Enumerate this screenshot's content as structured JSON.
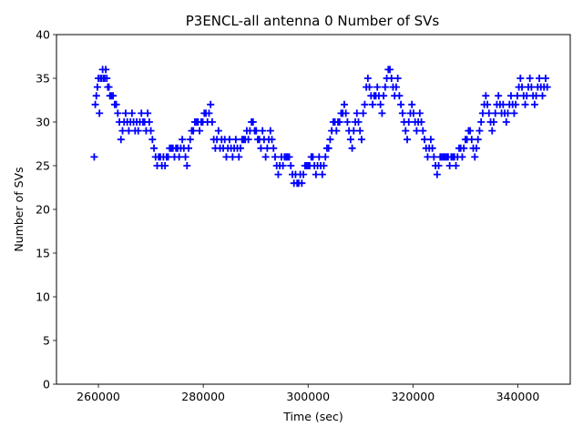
{
  "chart_data": {
    "type": "scatter",
    "title": "P3ENCL-all antenna 0 Number of SVs",
    "xlabel": "Time (sec)",
    "ylabel": "Number of SVs",
    "xlim": [
      252000,
      350000
    ],
    "ylim": [
      0,
      40
    ],
    "xticks": [
      260000,
      280000,
      300000,
      320000,
      340000
    ],
    "xtick_labels": [
      "260000",
      "280000",
      "300000",
      "320000",
      "340000"
    ],
    "yticks": [
      0,
      5,
      10,
      15,
      20,
      25,
      30,
      35,
      40
    ],
    "ytick_labels": [
      "0",
      "5",
      "10",
      "15",
      "20",
      "25",
      "30",
      "35",
      "40"
    ],
    "grid": false,
    "legend": "none",
    "marker": "+",
    "color": "#0000ff",
    "series": [
      {
        "points": [
          [
            259200,
            26
          ],
          [
            259400,
            32
          ],
          [
            259600,
            33
          ],
          [
            259800,
            34
          ],
          [
            260000,
            35
          ],
          [
            260200,
            31
          ],
          [
            260400,
            35
          ],
          [
            260600,
            35
          ],
          [
            260800,
            36
          ],
          [
            261000,
            35
          ],
          [
            261200,
            35
          ],
          [
            261400,
            36
          ],
          [
            261600,
            35
          ],
          [
            261800,
            34
          ],
          [
            262000,
            34
          ],
          [
            262200,
            33
          ],
          [
            262500,
            33
          ],
          [
            262800,
            33
          ],
          [
            263100,
            32
          ],
          [
            263400,
            32
          ],
          [
            263700,
            31
          ],
          [
            264000,
            30
          ],
          [
            264300,
            28
          ],
          [
            264600,
            29
          ],
          [
            264900,
            30
          ],
          [
            265200,
            31
          ],
          [
            265500,
            30
          ],
          [
            265800,
            29
          ],
          [
            266100,
            30
          ],
          [
            266400,
            31
          ],
          [
            266700,
            30
          ],
          [
            267000,
            29
          ],
          [
            267300,
            30
          ],
          [
            267600,
            29
          ],
          [
            267900,
            30
          ],
          [
            268200,
            31
          ],
          [
            268500,
            30
          ],
          [
            268800,
            30
          ],
          [
            269100,
            29
          ],
          [
            269400,
            31
          ],
          [
            269700,
            30
          ],
          [
            270000,
            29
          ],
          [
            270300,
            28
          ],
          [
            270600,
            27
          ],
          [
            270900,
            26
          ],
          [
            271200,
            25
          ],
          [
            271500,
            26
          ],
          [
            271800,
            26
          ],
          [
            272100,
            25
          ],
          [
            272400,
            26
          ],
          [
            272700,
            25
          ],
          [
            273000,
            26
          ],
          [
            273300,
            26
          ],
          [
            273600,
            27
          ],
          [
            273900,
            27
          ],
          [
            274200,
            27
          ],
          [
            274500,
            26
          ],
          [
            274800,
            27
          ],
          [
            275100,
            27
          ],
          [
            275400,
            26
          ],
          [
            275700,
            27
          ],
          [
            276000,
            28
          ],
          [
            276300,
            27
          ],
          [
            276600,
            26
          ],
          [
            276900,
            25
          ],
          [
            277200,
            27
          ],
          [
            277500,
            28
          ],
          [
            277800,
            29
          ],
          [
            278100,
            29
          ],
          [
            278400,
            30
          ],
          [
            278700,
            30
          ],
          [
            279000,
            30
          ],
          [
            279300,
            29
          ],
          [
            279600,
            30
          ],
          [
            279900,
            30
          ],
          [
            280200,
            31
          ],
          [
            280500,
            31
          ],
          [
            280800,
            30
          ],
          [
            281100,
            31
          ],
          [
            281400,
            32
          ],
          [
            281700,
            30
          ],
          [
            282000,
            28
          ],
          [
            282300,
            27
          ],
          [
            282600,
            28
          ],
          [
            282900,
            29
          ],
          [
            283200,
            27
          ],
          [
            283500,
            28
          ],
          [
            283800,
            27
          ],
          [
            284100,
            28
          ],
          [
            284400,
            26
          ],
          [
            284700,
            27
          ],
          [
            285000,
            28
          ],
          [
            285300,
            27
          ],
          [
            285600,
            26
          ],
          [
            285900,
            27
          ],
          [
            286200,
            28
          ],
          [
            286500,
            27
          ],
          [
            286800,
            26
          ],
          [
            287100,
            27
          ],
          [
            287400,
            28
          ],
          [
            287700,
            28
          ],
          [
            288000,
            28
          ],
          [
            288300,
            29
          ],
          [
            288600,
            28
          ],
          [
            288900,
            29
          ],
          [
            289200,
            30
          ],
          [
            289500,
            30
          ],
          [
            289800,
            29
          ],
          [
            290100,
            29
          ],
          [
            290400,
            28
          ],
          [
            290700,
            28
          ],
          [
            291000,
            27
          ],
          [
            291300,
            29
          ],
          [
            291600,
            28
          ],
          [
            291900,
            26
          ],
          [
            292200,
            27
          ],
          [
            292500,
            28
          ],
          [
            292800,
            29
          ],
          [
            293100,
            28
          ],
          [
            293400,
            27
          ],
          [
            293700,
            26
          ],
          [
            294000,
            25
          ],
          [
            294300,
            24
          ],
          [
            294600,
            25
          ],
          [
            294900,
            26
          ],
          [
            295200,
            25
          ],
          [
            295500,
            26
          ],
          [
            295800,
            26
          ],
          [
            296100,
            26
          ],
          [
            296400,
            26
          ],
          [
            296700,
            25
          ],
          [
            297000,
            24
          ],
          [
            297300,
            23
          ],
          [
            297600,
            24
          ],
          [
            297900,
            23
          ],
          [
            298200,
            23
          ],
          [
            298500,
            24
          ],
          [
            298800,
            23
          ],
          [
            299100,
            24
          ],
          [
            299400,
            25
          ],
          [
            299700,
            25
          ],
          [
            300000,
            25
          ],
          [
            300300,
            25
          ],
          [
            300600,
            26
          ],
          [
            300900,
            26
          ],
          [
            301200,
            25
          ],
          [
            301500,
            24
          ],
          [
            301800,
            25
          ],
          [
            302100,
            26
          ],
          [
            302400,
            25
          ],
          [
            302700,
            24
          ],
          [
            303000,
            25
          ],
          [
            303300,
            26
          ],
          [
            303600,
            27
          ],
          [
            303900,
            27
          ],
          [
            304200,
            28
          ],
          [
            304500,
            29
          ],
          [
            304800,
            30
          ],
          [
            305100,
            30
          ],
          [
            305400,
            29
          ],
          [
            305700,
            30
          ],
          [
            306000,
            30
          ],
          [
            306300,
            31
          ],
          [
            306600,
            31
          ],
          [
            306900,
            32
          ],
          [
            307200,
            31
          ],
          [
            307500,
            30
          ],
          [
            307800,
            29
          ],
          [
            308100,
            28
          ],
          [
            308400,
            27
          ],
          [
            308700,
            29
          ],
          [
            309000,
            30
          ],
          [
            309300,
            31
          ],
          [
            309600,
            30
          ],
          [
            309900,
            29
          ],
          [
            310200,
            28
          ],
          [
            310500,
            31
          ],
          [
            310800,
            32
          ],
          [
            311100,
            34
          ],
          [
            311400,
            35
          ],
          [
            311700,
            34
          ],
          [
            312000,
            33
          ],
          [
            312300,
            32
          ],
          [
            312600,
            33
          ],
          [
            312900,
            33
          ],
          [
            313200,
            34
          ],
          [
            313500,
            33
          ],
          [
            313800,
            32
          ],
          [
            314100,
            31
          ],
          [
            314400,
            33
          ],
          [
            314700,
            34
          ],
          [
            315000,
            35
          ],
          [
            315300,
            36
          ],
          [
            315600,
            36
          ],
          [
            315900,
            35
          ],
          [
            316200,
            34
          ],
          [
            316500,
            33
          ],
          [
            316800,
            34
          ],
          [
            317100,
            35
          ],
          [
            317400,
            33
          ],
          [
            317700,
            32
          ],
          [
            318000,
            31
          ],
          [
            318300,
            30
          ],
          [
            318600,
            29
          ],
          [
            318900,
            28
          ],
          [
            319200,
            30
          ],
          [
            319500,
            31
          ],
          [
            319800,
            32
          ],
          [
            320100,
            31
          ],
          [
            320400,
            30
          ],
          [
            320700,
            29
          ],
          [
            321000,
            30
          ],
          [
            321300,
            31
          ],
          [
            321600,
            30
          ],
          [
            321900,
            29
          ],
          [
            322200,
            28
          ],
          [
            322500,
            27
          ],
          [
            322800,
            26
          ],
          [
            323100,
            27
          ],
          [
            323400,
            28
          ],
          [
            323700,
            27
          ],
          [
            324000,
            26
          ],
          [
            324300,
            25
          ],
          [
            324600,
            24
          ],
          [
            324900,
            25
          ],
          [
            325200,
            26
          ],
          [
            325500,
            26
          ],
          [
            325800,
            26
          ],
          [
            326100,
            26
          ],
          [
            326400,
            26
          ],
          [
            326700,
            26
          ],
          [
            327000,
            25
          ],
          [
            327300,
            26
          ],
          [
            327600,
            26
          ],
          [
            327900,
            26
          ],
          [
            328200,
            25
          ],
          [
            328500,
            26
          ],
          [
            328800,
            27
          ],
          [
            329100,
            27
          ],
          [
            329400,
            26
          ],
          [
            329700,
            27
          ],
          [
            330000,
            28
          ],
          [
            330300,
            28
          ],
          [
            330600,
            29
          ],
          [
            330900,
            29
          ],
          [
            331200,
            28
          ],
          [
            331500,
            27
          ],
          [
            331800,
            26
          ],
          [
            332100,
            27
          ],
          [
            332400,
            28
          ],
          [
            332700,
            29
          ],
          [
            333000,
            30
          ],
          [
            333300,
            31
          ],
          [
            333600,
            32
          ],
          [
            333900,
            33
          ],
          [
            334200,
            32
          ],
          [
            334500,
            31
          ],
          [
            334800,
            30
          ],
          [
            335100,
            29
          ],
          [
            335400,
            30
          ],
          [
            335700,
            31
          ],
          [
            336000,
            32
          ],
          [
            336300,
            33
          ],
          [
            336600,
            32
          ],
          [
            336900,
            31
          ],
          [
            337200,
            32
          ],
          [
            337500,
            31
          ],
          [
            337800,
            30
          ],
          [
            338100,
            31
          ],
          [
            338400,
            32
          ],
          [
            338700,
            33
          ],
          [
            339000,
            32
          ],
          [
            339300,
            31
          ],
          [
            339600,
            32
          ],
          [
            339900,
            33
          ],
          [
            340200,
            34
          ],
          [
            340500,
            35
          ],
          [
            340800,
            34
          ],
          [
            341100,
            33
          ],
          [
            341400,
            32
          ],
          [
            341700,
            33
          ],
          [
            342000,
            34
          ],
          [
            342300,
            35
          ],
          [
            342600,
            34
          ],
          [
            342900,
            33
          ],
          [
            343200,
            32
          ],
          [
            343500,
            33
          ],
          [
            343800,
            34
          ],
          [
            344100,
            35
          ],
          [
            344400,
            34
          ],
          [
            344700,
            33
          ],
          [
            345000,
            34
          ],
          [
            345300,
            35
          ],
          [
            345600,
            34
          ]
        ]
      }
    ]
  }
}
